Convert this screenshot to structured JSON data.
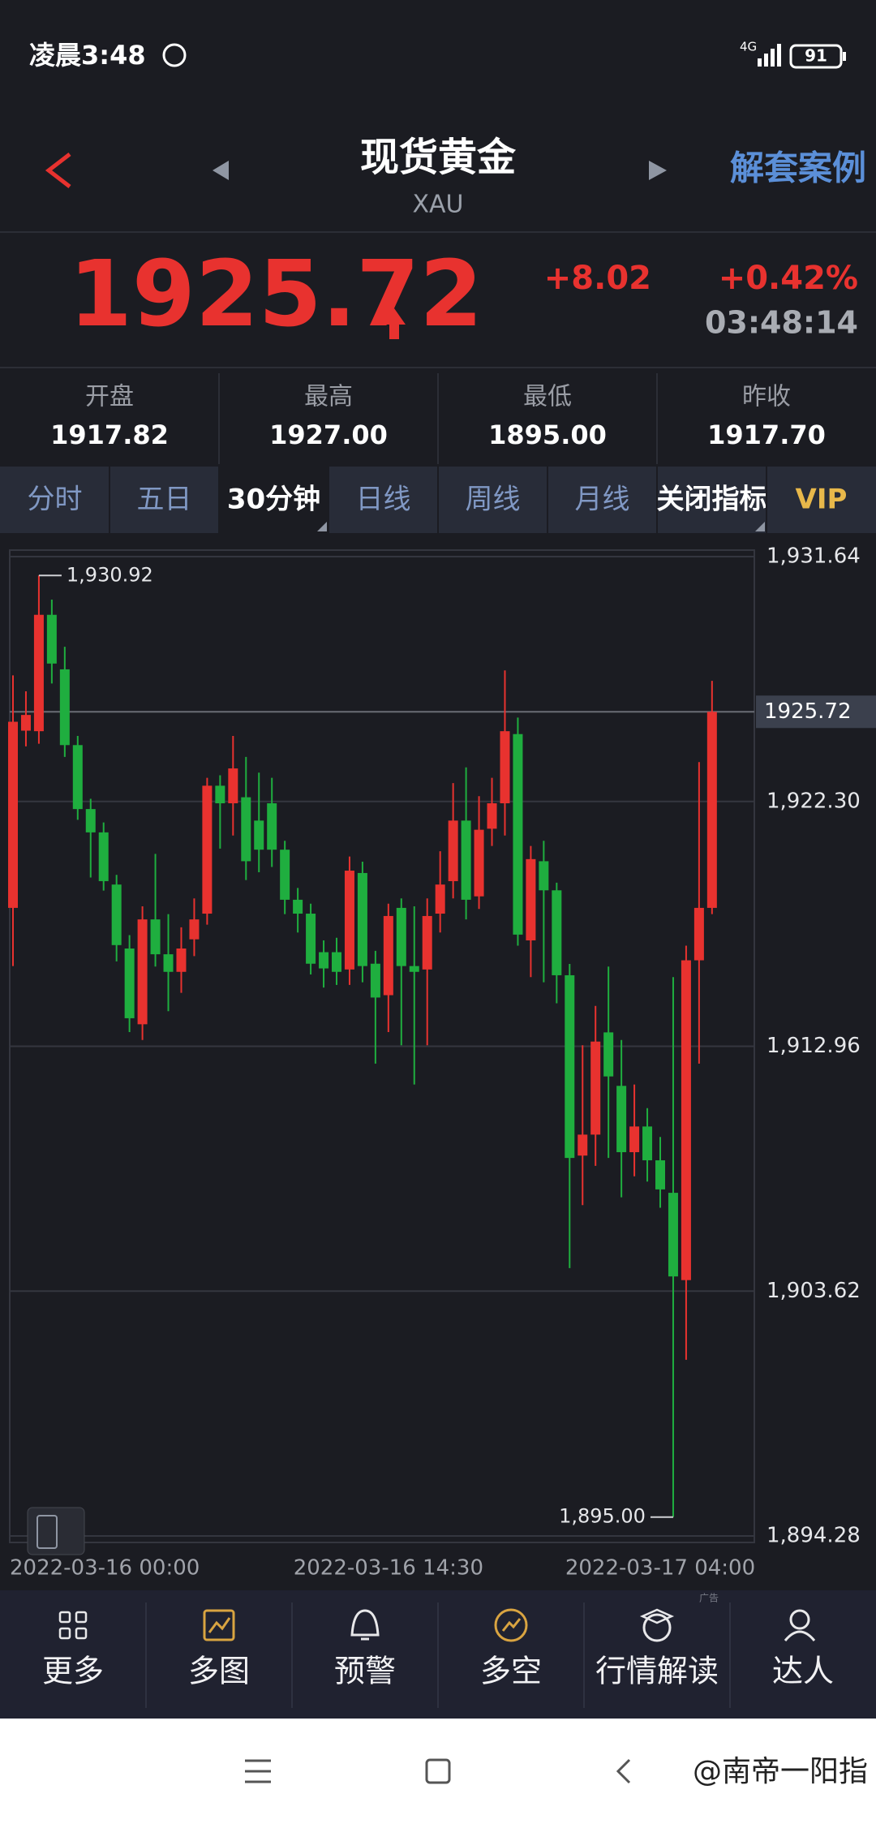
{
  "status_bar": {
    "time": "凌晨3:48",
    "network": "4G",
    "battery": "91"
  },
  "header": {
    "title": "现货黄金",
    "symbol": "XAU",
    "action": "解套案例"
  },
  "quote": {
    "price": "1925.72",
    "change": "+8.02",
    "change_pct": "+0.42%",
    "time": "03:48:14"
  },
  "stats": [
    {
      "label": "开盘",
      "value": "1917.82"
    },
    {
      "label": "最高",
      "value": "1927.00"
    },
    {
      "label": "最低",
      "value": "1895.00"
    },
    {
      "label": "昨收",
      "value": "1917.70"
    }
  ],
  "tabs": [
    "分时",
    "五日",
    "30分钟",
    "日线",
    "周线",
    "月线",
    "关闭指标",
    "VIP"
  ],
  "chart_data": {
    "type": "candlestick",
    "categories": [
      "2022-03-16 00:00",
      null,
      null,
      null,
      null,
      null,
      null,
      null,
      null,
      null,
      null,
      null,
      null,
      null,
      null,
      null,
      null,
      null,
      null,
      null,
      null,
      null,
      null,
      null,
      null,
      null,
      null,
      null,
      null,
      "2022-03-16 14:30",
      null,
      null,
      null,
      null,
      null,
      null,
      null,
      null,
      null,
      null,
      null,
      null,
      null,
      null,
      null,
      null,
      null,
      null,
      null,
      null,
      "2022-03-17 04:00",
      null,
      null,
      null,
      null
    ],
    "open": [
      1918.24,
      1925.0,
      1924.98,
      1929.42,
      1927.34,
      1924.45,
      1922.01,
      1921.12,
      1919.13,
      1916.69,
      1913.8,
      1917.8,
      1916.47,
      1915.8,
      1917.04,
      1918.02,
      1922.9,
      1922.23,
      1922.46,
      1921.57,
      1922.23,
      1920.46,
      1918.55,
      1918.02,
      1916.55,
      1916.55,
      1915.89,
      1919.57,
      1916.11,
      1914.91,
      1918.24,
      1916.02,
      1915.89,
      1918.02,
      1919.26,
      1921.57,
      1918.68,
      1921.26,
      1922.23,
      1924.87,
      1917.0,
      1920.02,
      1918.91,
      1915.67,
      1908.79,
      1909.59,
      1913.49,
      1911.45,
      1908.92,
      1909.9,
      1908.61,
      1907.37,
      1904.04,
      1916.24,
      1918.24
    ],
    "high": [
      1927.11,
      1926.5,
      1930.92,
      1930.0,
      1928.2,
      1924.8,
      1922.4,
      1921.5,
      1919.5,
      1917.2,
      1918.3,
      1920.3,
      1918.0,
      1917.5,
      1918.6,
      1923.2,
      1923.3,
      1924.8,
      1924.0,
      1923.4,
      1923.2,
      1920.8,
      1919.0,
      1918.4,
      1917.0,
      1917.1,
      1920.2,
      1920.0,
      1916.6,
      1918.4,
      1918.6,
      1918.3,
      1918.6,
      1920.4,
      1923.0,
      1923.6,
      1922.5,
      1923.2,
      1927.3,
      1925.5,
      1920.6,
      1920.8,
      1919.2,
      1916.1,
      1913.0,
      1914.5,
      1916.0,
      1913.2,
      1911.5,
      1910.6,
      1909.5,
      1915.6,
      1916.8,
      1923.8,
      1926.9
    ],
    "low": [
      1916.02,
      1924.4,
      1924.5,
      1926.8,
      1924.0,
      1921.6,
      1919.4,
      1918.9,
      1916.2,
      1913.5,
      1913.2,
      1916.0,
      1914.3,
      1915.0,
      1916.4,
      1917.6,
      1920.5,
      1921.0,
      1919.3,
      1919.6,
      1919.8,
      1918.0,
      1917.3,
      1915.7,
      1915.2,
      1915.3,
      1915.3,
      1915.4,
      1912.3,
      1913.5,
      1913.0,
      1911.5,
      1913.0,
      1917.3,
      1918.6,
      1917.8,
      1918.2,
      1920.6,
      1921.0,
      1916.8,
      1915.6,
      1915.4,
      1914.6,
      1904.5,
      1906.9,
      1908.4,
      1908.7,
      1907.2,
      1908.0,
      1907.8,
      1906.8,
      1895.0,
      1901.0,
      1912.3,
      1918.0
    ],
    "close": [
      1925.34,
      1925.6,
      1929.42,
      1927.56,
      1924.45,
      1922.01,
      1921.12,
      1919.26,
      1916.82,
      1914.03,
      1917.8,
      1916.47,
      1915.8,
      1916.69,
      1917.8,
      1922.9,
      1922.23,
      1923.56,
      1920.02,
      1920.46,
      1920.46,
      1918.55,
      1918.02,
      1916.11,
      1915.93,
      1915.8,
      1919.66,
      1916.02,
      1914.82,
      1917.93,
      1916.02,
      1915.8,
      1917.93,
      1919.13,
      1921.57,
      1918.55,
      1921.22,
      1922.23,
      1924.98,
      1917.22,
      1920.1,
      1918.91,
      1915.67,
      1908.7,
      1909.59,
      1913.14,
      1911.81,
      1908.92,
      1909.9,
      1908.61,
      1907.5,
      1904.18,
      1916.24,
      1918.24,
      1925.72
    ],
    "up_color": "#e8322f",
    "down_color": "#1fae3f",
    "ylim": [
      1894.28,
      1931.64
    ],
    "yticks": [
      {
        "value": 1931.64,
        "label": "1,931.64"
      },
      {
        "value": 1922.3,
        "label": "1,922.30"
      },
      {
        "value": 1912.96,
        "label": "1,912.96"
      },
      {
        "value": 1903.62,
        "label": "1,903.62"
      },
      {
        "value": 1894.28,
        "label": "1,894.28"
      }
    ],
    "grid": true,
    "last_price": 1925.72,
    "high_marker": {
      "value": 1930.92,
      "label": "1,930.92"
    },
    "low_marker": {
      "value": 1895.0,
      "label": "1,895.00"
    }
  },
  "bottom_nav": [
    "更多",
    "多图",
    "预警",
    "多空",
    "行情解读",
    "达人"
  ],
  "ad_tag": "广告",
  "watermark": "@南帝一阳指"
}
